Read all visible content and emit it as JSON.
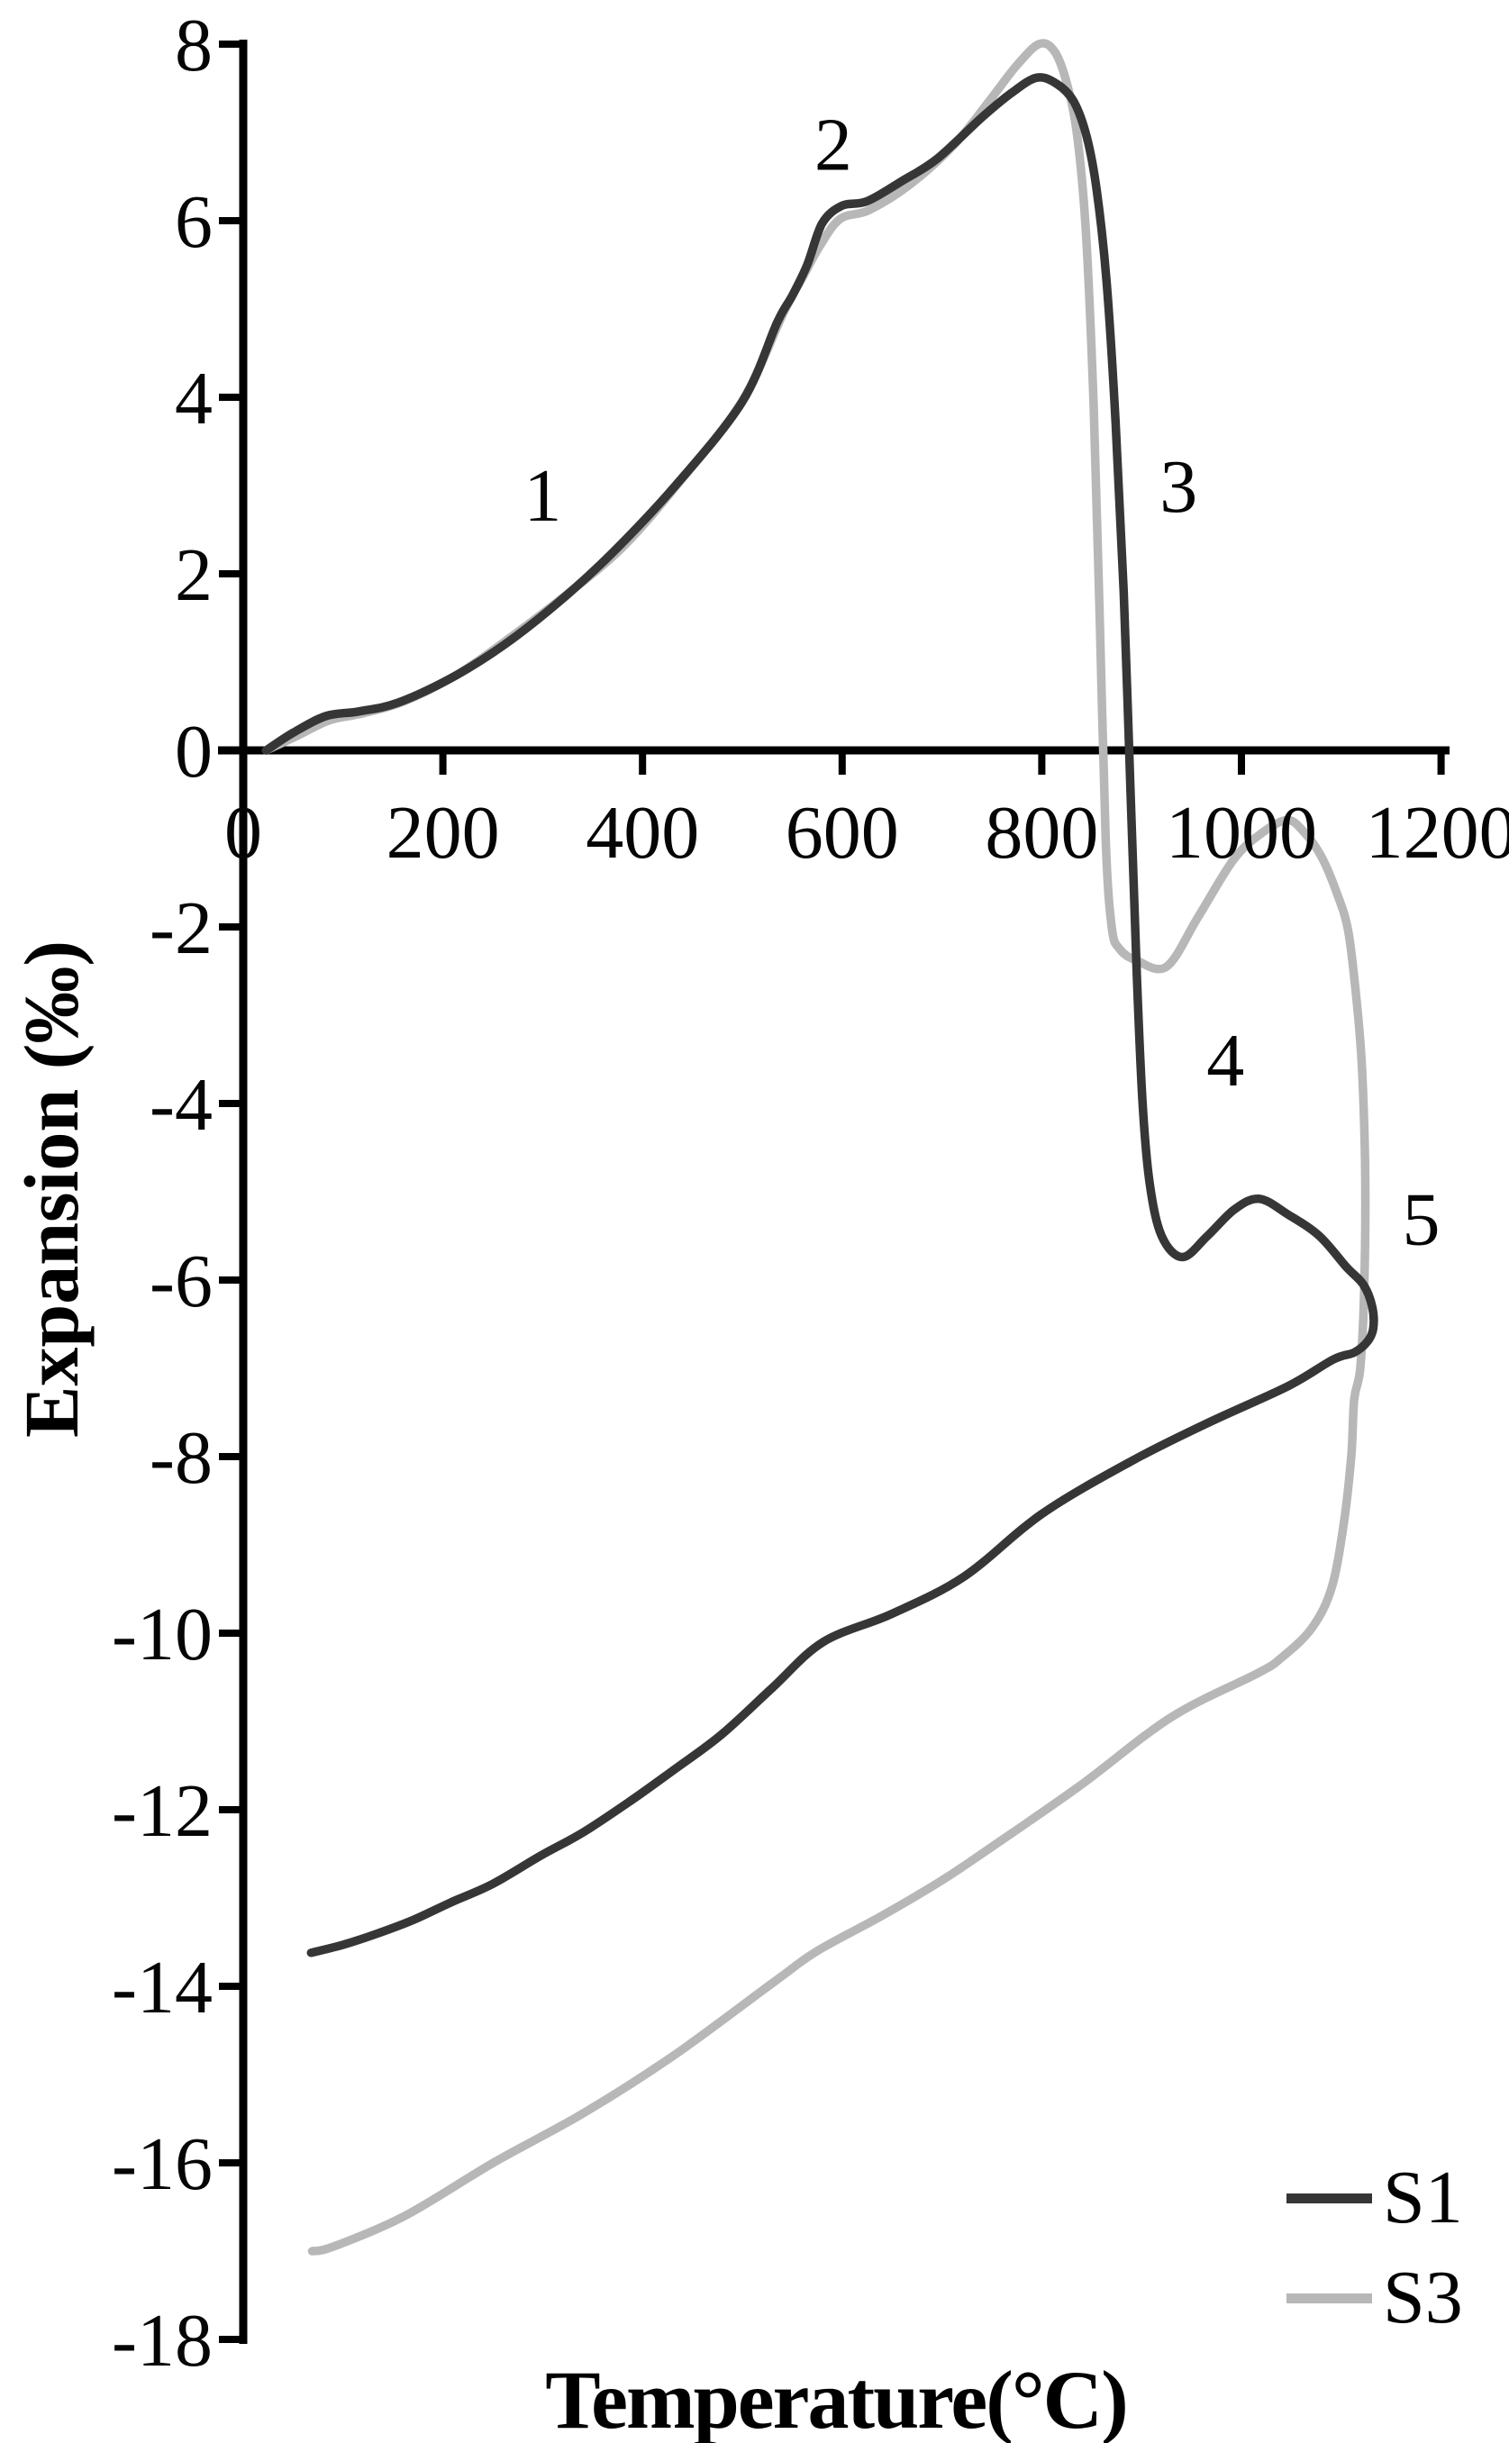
{
  "chart_data": {
    "type": "line",
    "title": "",
    "xlabel": "Temperature(°C)",
    "ylabel": "Expansion (‰)",
    "xlim": [
      0,
      1200
    ],
    "ylim": [
      -18,
      8
    ],
    "x_ticks": [
      0,
      200,
      400,
      600,
      800,
      1000,
      1200
    ],
    "y_ticks": [
      8,
      6,
      4,
      2,
      0,
      -2,
      -4,
      -6,
      -8,
      -10,
      -12,
      -14,
      -16,
      -18
    ],
    "grid": false,
    "legend_position": "bottom-right",
    "colors": {
      "background": "#ffffff",
      "axis": "#000000",
      "text": "#050505",
      "s1": "#363636",
      "s3": "#b7b7b7"
    },
    "series": [
      {
        "name": "S1",
        "color": "#363636",
        "points": [
          [
            23,
            0
          ],
          [
            50,
            0.2
          ],
          [
            83,
            0.39
          ],
          [
            115,
            0.44
          ],
          [
            155,
            0.54
          ],
          [
            210,
            0.83
          ],
          [
            262,
            1.2
          ],
          [
            316,
            1.68
          ],
          [
            370,
            2.24
          ],
          [
            433,
            3.0
          ],
          [
            500,
            3.95
          ],
          [
            535,
            4.85
          ],
          [
            550,
            5.15
          ],
          [
            565,
            5.5
          ],
          [
            580,
            5.97
          ],
          [
            600,
            6.17
          ],
          [
            625,
            6.22
          ],
          [
            660,
            6.45
          ],
          [
            695,
            6.7
          ],
          [
            740,
            7.17
          ],
          [
            770,
            7.45
          ],
          [
            795,
            7.62
          ],
          [
            815,
            7.55
          ],
          [
            832,
            7.35
          ],
          [
            845,
            6.95
          ],
          [
            855,
            6.35
          ],
          [
            865,
            5.3
          ],
          [
            874,
            3.7
          ],
          [
            882,
            1.8
          ],
          [
            889,
            -0.5
          ],
          [
            895,
            -2.5
          ],
          [
            901,
            -4.0
          ],
          [
            908,
            -4.9
          ],
          [
            920,
            -5.5
          ],
          [
            941,
            -5.74
          ],
          [
            966,
            -5.5
          ],
          [
            993,
            -5.2
          ],
          [
            1018,
            -5.08
          ],
          [
            1047,
            -5.26
          ],
          [
            1078,
            -5.5
          ],
          [
            1105,
            -5.85
          ],
          [
            1122,
            -6.05
          ],
          [
            1131,
            -6.3
          ],
          [
            1132,
            -6.55
          ],
          [
            1126,
            -6.7
          ],
          [
            1113,
            -6.82
          ],
          [
            1092,
            -6.9
          ],
          [
            1047,
            -7.2
          ],
          [
            966,
            -7.62
          ],
          [
            890,
            -8.05
          ],
          [
            800,
            -8.65
          ],
          [
            722,
            -9.36
          ],
          [
            650,
            -9.78
          ],
          [
            581,
            -10.1
          ],
          [
            530,
            -10.62
          ],
          [
            479,
            -11.15
          ],
          [
            430,
            -11.56
          ],
          [
            388,
            -11.9
          ],
          [
            340,
            -12.26
          ],
          [
            298,
            -12.52
          ],
          [
            250,
            -12.84
          ],
          [
            208,
            -13.05
          ],
          [
            170,
            -13.25
          ],
          [
            135,
            -13.4
          ],
          [
            100,
            -13.53
          ],
          [
            68,
            -13.62
          ]
        ]
      },
      {
        "name": "S3",
        "color": "#b7b7b7",
        "points": [
          [
            23,
            0
          ],
          [
            55,
            0.17
          ],
          [
            86,
            0.34
          ],
          [
            120,
            0.42
          ],
          [
            162,
            0.56
          ],
          [
            216,
            0.87
          ],
          [
            270,
            1.3
          ],
          [
            320,
            1.73
          ],
          [
            380,
            2.3
          ],
          [
            437,
            3.04
          ],
          [
            500,
            3.96
          ],
          [
            541,
            4.95
          ],
          [
            560,
            5.35
          ],
          [
            578,
            5.72
          ],
          [
            598,
            6.02
          ],
          [
            627,
            6.12
          ],
          [
            668,
            6.41
          ],
          [
            713,
            6.87
          ],
          [
            749,
            7.38
          ],
          [
            775,
            7.76
          ],
          [
            797,
            8.0
          ],
          [
            812,
            7.93
          ],
          [
            824,
            7.6
          ],
          [
            835,
            7.0
          ],
          [
            844,
            5.9
          ],
          [
            852,
            3.9
          ],
          [
            858,
            1.5
          ],
          [
            864,
            -1.0
          ],
          [
            870,
            -2.0
          ],
          [
            878,
            -2.25
          ],
          [
            895,
            -2.38
          ],
          [
            925,
            -2.45
          ],
          [
            956,
            -1.9
          ],
          [
            992,
            -1.24
          ],
          [
            1020,
            -0.94
          ],
          [
            1046,
            -0.79
          ],
          [
            1063,
            -0.93
          ],
          [
            1080,
            -1.2
          ],
          [
            1095,
            -1.6
          ],
          [
            1107,
            -2.05
          ],
          [
            1116,
            -2.9
          ],
          [
            1121,
            -3.65
          ],
          [
            1124,
            -4.8
          ],
          [
            1123,
            -6.1
          ],
          [
            1119,
            -7.0
          ],
          [
            1113,
            -7.35
          ],
          [
            1110,
            -8.0
          ],
          [
            1102,
            -8.8
          ],
          [
            1090,
            -9.5
          ],
          [
            1070,
            -9.95
          ],
          [
            1040,
            -10.28
          ],
          [
            1017,
            -10.45
          ],
          [
            930,
            -10.95
          ],
          [
            838,
            -11.73
          ],
          [
            750,
            -12.42
          ],
          [
            700,
            -12.8
          ],
          [
            640,
            -13.2
          ],
          [
            575,
            -13.6
          ],
          [
            533,
            -13.94
          ],
          [
            433,
            -14.77
          ],
          [
            342,
            -15.43
          ],
          [
            252,
            -15.99
          ],
          [
            162,
            -16.6
          ],
          [
            90,
            -16.95
          ],
          [
            69,
            -17.0
          ]
        ]
      }
    ],
    "annotations": [
      {
        "text": "1",
        "T": 300,
        "E": 2.9
      },
      {
        "text": "2",
        "T": 591,
        "E": 6.87
      },
      {
        "text": "3",
        "T": 937,
        "E": 3.0
      },
      {
        "text": "4",
        "T": 984,
        "E": -3.5
      },
      {
        "text": "5",
        "T": 1180,
        "E": -5.3
      }
    ]
  }
}
